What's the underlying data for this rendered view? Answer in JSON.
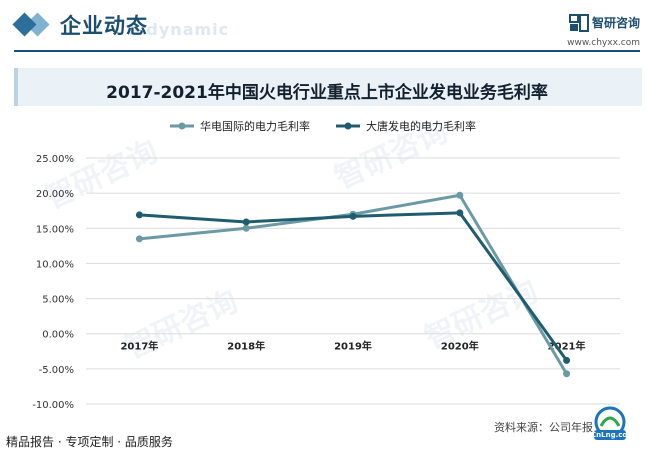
{
  "header": {
    "title": "企业动态",
    "title_en": "e dynamic",
    "brand_name": "智研咨询",
    "brand_url": "www.chyxx.com"
  },
  "chart_data": {
    "type": "line",
    "title": "2017-2021年中国火电行业重点上市企业发电业务毛利率",
    "categories": [
      "2017年",
      "2018年",
      "2019年",
      "2020年",
      "2021年"
    ],
    "series": [
      {
        "name": "华电国际的电力毛利率",
        "color": "#6b9aa6",
        "values": [
          13.5,
          15.0,
          17.0,
          19.7,
          -5.7
        ]
      },
      {
        "name": "大唐发电的电力毛利率",
        "color": "#1f5c6e",
        "values": [
          16.9,
          15.9,
          16.7,
          17.2,
          -3.8
        ]
      }
    ],
    "ylim": [
      -10,
      25
    ],
    "yticks": [
      "25.00%",
      "20.00%",
      "15.00%",
      "10.00%",
      "5.00%",
      "0.00%",
      "-5.00%",
      "-10.00%"
    ],
    "ytick_values": [
      25,
      20,
      15,
      10,
      5,
      0,
      -5,
      -10
    ],
    "grid": true,
    "legend": "top-center"
  },
  "footer": {
    "left": "精品报告 · 专项定制 · 品质服务",
    "right": "资料来源：公司年报",
    "corner_logo": "CnLng.com"
  }
}
